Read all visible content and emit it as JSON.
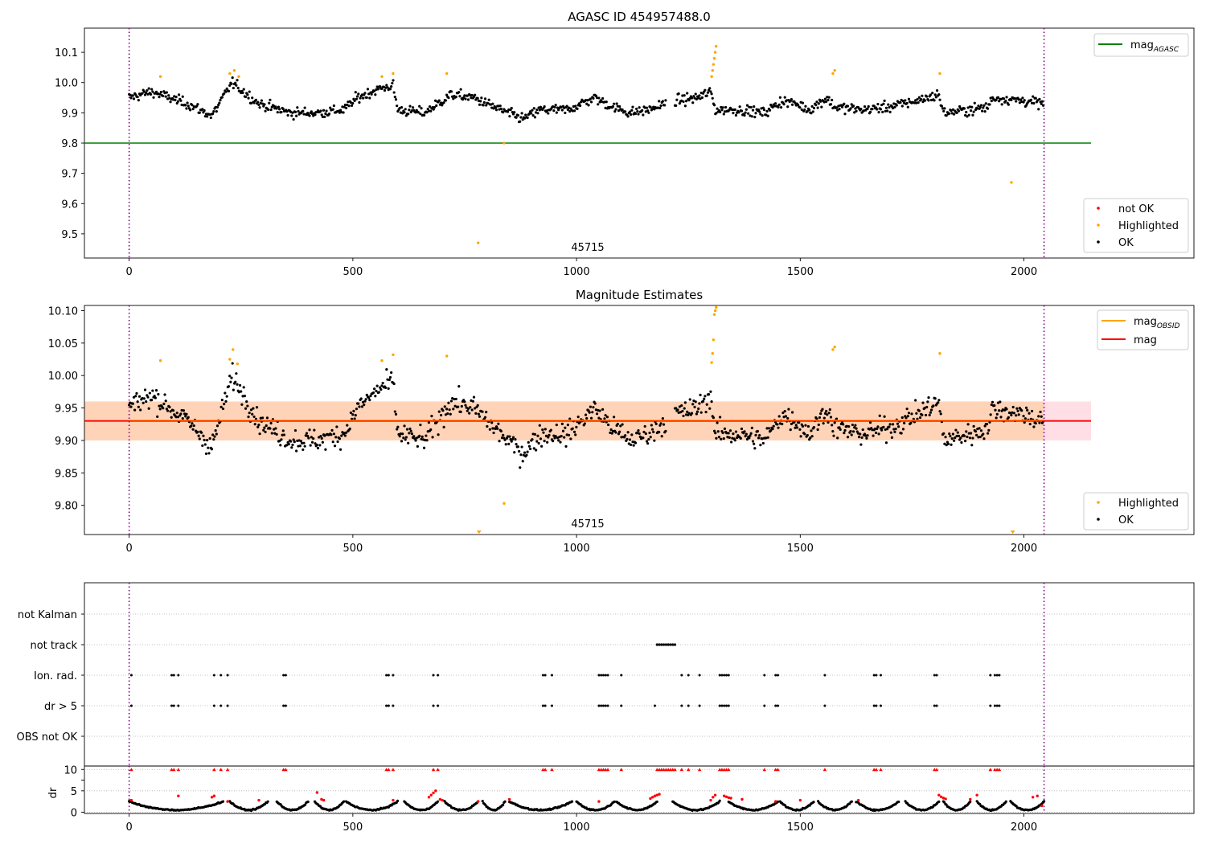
{
  "chart_data": [
    {
      "type": "scatter",
      "title": "AGASC ID 454957488.0",
      "xlim": [
        -100,
        2380
      ],
      "ylim": [
        9.42,
        10.18
      ],
      "xticks": [
        0,
        500,
        1000,
        1500,
        2000
      ],
      "yticks": [
        9.5,
        9.6,
        9.7,
        9.8,
        9.9,
        10.0,
        10.1
      ],
      "ytick_labels": [
        "9.5",
        "9.6",
        "9.7",
        "9.8",
        "9.9",
        "10.0",
        "10.1"
      ],
      "obsid_label": "45715",
      "vlines": [
        0,
        2045
      ],
      "hline": {
        "y": 9.8,
        "x0": -100,
        "x1": 2150,
        "color": "#008000"
      },
      "ok_pattern": [
        [
          0,
          9.95
        ],
        [
          50,
          9.97
        ],
        [
          90,
          9.95
        ],
        [
          130,
          9.93
        ],
        [
          185,
          9.89
        ],
        [
          230,
          10.0
        ],
        [
          290,
          9.93
        ],
        [
          360,
          9.9
        ],
        [
          420,
          9.9
        ],
        [
          480,
          9.91
        ],
        [
          510,
          9.95
        ],
        [
          560,
          9.98
        ],
        [
          590,
          9.99
        ],
        [
          600,
          9.91
        ],
        [
          660,
          9.9
        ],
        [
          720,
          9.96
        ],
        [
          770,
          9.95
        ],
        [
          800,
          9.93
        ],
        [
          830,
          9.91
        ],
        [
          880,
          9.88
        ],
        [
          920,
          9.91
        ],
        [
          980,
          9.91
        ],
        [
          1040,
          9.95
        ],
        [
          1080,
          9.92
        ],
        [
          1120,
          9.9
        ],
        [
          1160,
          9.91
        ],
        [
          1200,
          9.93
        ]
      ],
      "ok_pattern_2": [
        [
          1220,
          9.94
        ],
        [
          1270,
          9.95
        ],
        [
          1300,
          9.97
        ],
        [
          1310,
          9.91
        ],
        [
          1360,
          9.91
        ],
        [
          1420,
          9.9
        ],
        [
          1460,
          9.94
        ],
        [
          1490,
          9.93
        ],
        [
          1520,
          9.91
        ],
        [
          1560,
          9.95
        ],
        [
          1575,
          9.92
        ],
        [
          1640,
          9.91
        ],
        [
          1700,
          9.92
        ],
        [
          1760,
          9.94
        ],
        [
          1810,
          9.96
        ],
        [
          1820,
          9.9
        ],
        [
          1880,
          9.91
        ],
        [
          1920,
          9.92
        ],
        [
          1930,
          9.95
        ],
        [
          2000,
          9.94
        ],
        [
          2045,
          9.93
        ]
      ],
      "ok_noise": 0.018,
      "highlighted_points": [
        [
          70,
          10.02
        ],
        [
          225,
          10.03
        ],
        [
          235,
          10.04
        ],
        [
          245,
          10.02
        ],
        [
          565,
          10.02
        ],
        [
          590,
          10.03
        ],
        [
          710,
          10.03
        ],
        [
          780,
          9.47
        ],
        [
          838,
          9.8
        ],
        [
          1302,
          10.02
        ],
        [
          1304,
          10.04
        ],
        [
          1306,
          10.06
        ],
        [
          1308,
          10.08
        ],
        [
          1310,
          10.1
        ],
        [
          1312,
          10.12
        ],
        [
          1573,
          10.03
        ],
        [
          1577,
          10.04
        ],
        [
          1812,
          10.03
        ],
        [
          1972,
          9.67
        ]
      ],
      "legends": [
        {
          "position": "top-right",
          "entries": [
            {
              "label": "mag",
              "sub": "AGASC",
              "color": "#008000",
              "kind": "line"
            }
          ]
        },
        {
          "position": "bottom-right",
          "entries": [
            {
              "label": "not OK",
              "color": "#ff0000",
              "kind": "dot"
            },
            {
              "label": "Highlighted",
              "color": "#ffa500",
              "kind": "dot"
            },
            {
              "label": "OK",
              "color": "#000000",
              "kind": "dot"
            }
          ]
        }
      ]
    },
    {
      "type": "scatter",
      "title": "Magnitude Estimates",
      "xlim": [
        -100,
        2380
      ],
      "ylim": [
        9.755,
        10.108
      ],
      "xticks": [
        0,
        500,
        1000,
        1500,
        2000
      ],
      "yticks": [
        9.8,
        9.85,
        9.9,
        9.95,
        10.0,
        10.05,
        10.1
      ],
      "ytick_labels": [
        "9.80",
        "9.85",
        "9.90",
        "9.95",
        "10.00",
        "10.05",
        "10.10"
      ],
      "obsid_label": "45715",
      "vlines": [
        0,
        2045
      ],
      "band": {
        "y0": 9.9,
        "y1": 9.96,
        "x0": -100,
        "x1": 2150
      },
      "inner_band": {
        "y0": 9.9,
        "y1": 9.96,
        "x0": -100,
        "x1": 2045
      },
      "hline": {
        "y": 9.93,
        "x0": -100,
        "x1": 2150,
        "color": "#ff0000"
      },
      "obs_line": {
        "y": 9.93,
        "x0": 0,
        "x1": 2045,
        "color": "#ffa500"
      },
      "ok_noise": 0.018,
      "highlighted_points": [
        [
          70,
          10.023
        ],
        [
          225,
          10.025
        ],
        [
          232,
          10.04
        ],
        [
          242,
          10.018
        ],
        [
          565,
          10.023
        ],
        [
          590,
          10.032
        ],
        [
          710,
          10.03
        ],
        [
          838,
          9.803
        ],
        [
          1302,
          10.02
        ],
        [
          1304,
          10.034
        ],
        [
          1306,
          10.055
        ],
        [
          1308,
          10.094
        ],
        [
          1310,
          10.1
        ],
        [
          1312,
          10.105
        ],
        [
          1573,
          10.04
        ],
        [
          1577,
          10.044
        ],
        [
          1812,
          10.034
        ]
      ],
      "below_range_markers": [
        782,
        1975
      ],
      "legends": [
        {
          "position": "top-right",
          "entries": [
            {
              "label": "mag",
              "sub": "OBSID",
              "color": "#ffa500",
              "kind": "line"
            },
            {
              "label": "mag",
              "sub": "",
              "color": "#ff0000",
              "kind": "line"
            }
          ]
        },
        {
          "position": "bottom-right",
          "entries": [
            {
              "label": "Highlighted",
              "color": "#ffa500",
              "kind": "dot"
            },
            {
              "label": "OK",
              "color": "#000000",
              "kind": "dot"
            }
          ]
        }
      ]
    },
    {
      "type": "scatter",
      "title": "",
      "xlim": [
        -100,
        2380
      ],
      "categories": [
        "not Kalman",
        "not track",
        "Ion. rad.",
        "dr > 5",
        "OBS not OK"
      ],
      "xticks": [
        0,
        500,
        1000,
        1500,
        2000
      ],
      "vlines": [
        0,
        2045
      ],
      "not_track_points": [
        1180,
        1185,
        1190,
        1195,
        1200,
        1205,
        1210,
        1215,
        1220
      ],
      "ion_rad_points": [
        5,
        95,
        100,
        110,
        190,
        205,
        220,
        345,
        350,
        575,
        580,
        590,
        680,
        690,
        925,
        930,
        945,
        1050,
        1055,
        1060,
        1065,
        1070,
        1100,
        1235,
        1250,
        1275,
        1320,
        1325,
        1330,
        1335,
        1340,
        1420,
        1445,
        1450,
        1555,
        1665,
        1670,
        1680,
        1800,
        1805,
        1925,
        1935,
        1940,
        1945
      ],
      "dr_ylabel": "dr",
      "dr_ylim": [
        -0.3,
        10.8
      ],
      "dr_yticks": [
        0,
        5,
        10
      ],
      "dr_segments": [
        [
          0,
          210
        ],
        [
          225,
          310
        ],
        [
          330,
          400
        ],
        [
          415,
          480
        ],
        [
          485,
          600
        ],
        [
          615,
          690
        ],
        [
          705,
          780
        ],
        [
          790,
          840
        ],
        [
          850,
          990
        ],
        [
          1000,
          1085
        ],
        [
          1090,
          1180
        ],
        [
          1215,
          1320
        ],
        [
          1340,
          1450
        ],
        [
          1455,
          1530
        ],
        [
          1540,
          1615
        ],
        [
          1625,
          1720
        ],
        [
          1735,
          1810
        ],
        [
          1820,
          1880
        ],
        [
          1895,
          1960
        ],
        [
          1970,
          2045
        ]
      ],
      "red_dr_marker_y": 10,
      "dr_red_points": [
        [
          5,
          2.8
        ],
        [
          110,
          3.8
        ],
        [
          185,
          3.5
        ],
        [
          190,
          3.8
        ],
        [
          220,
          2.5
        ],
        [
          290,
          2.8
        ],
        [
          420,
          4.6
        ],
        [
          430,
          3.0
        ],
        [
          435,
          2.8
        ],
        [
          590,
          2.8
        ],
        [
          670,
          3.5
        ],
        [
          675,
          4.0
        ],
        [
          680,
          4.5
        ],
        [
          685,
          5.0
        ],
        [
          695,
          3.0
        ],
        [
          700,
          2.8
        ],
        [
          780,
          2.5
        ],
        [
          850,
          3.0
        ],
        [
          1050,
          2.5
        ],
        [
          1165,
          3.2
        ],
        [
          1170,
          3.5
        ],
        [
          1175,
          3.8
        ],
        [
          1180,
          4.0
        ],
        [
          1185,
          4.2
        ],
        [
          1300,
          2.8
        ],
        [
          1305,
          3.5
        ],
        [
          1310,
          4.0
        ],
        [
          1330,
          3.8
        ],
        [
          1335,
          3.6
        ],
        [
          1340,
          3.4
        ],
        [
          1345,
          3.3
        ],
        [
          1370,
          3.0
        ],
        [
          1445,
          2.5
        ],
        [
          1500,
          2.8
        ],
        [
          1630,
          2.8
        ],
        [
          1810,
          4.0
        ],
        [
          1815,
          3.6
        ],
        [
          1820,
          3.3
        ],
        [
          1825,
          3.1
        ],
        [
          1880,
          3.0
        ],
        [
          1895,
          4.0
        ],
        [
          2020,
          3.5
        ],
        [
          2030,
          3.8
        ],
        [
          2040,
          1.5
        ]
      ]
    }
  ]
}
